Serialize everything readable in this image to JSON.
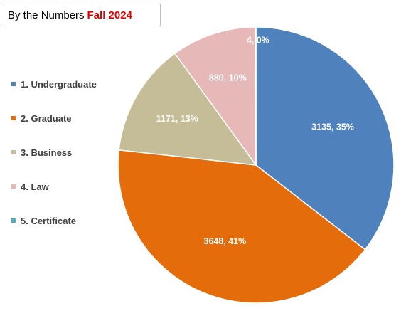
{
  "title": {
    "text": "By the Numbers",
    "highlight": "Fall 2024",
    "highlight_color": "#e00000"
  },
  "chart_data": {
    "type": "pie",
    "start_angle_deg": 0,
    "direction": "clockwise",
    "legend_position": "left",
    "slices": [
      {
        "label": "1. Undergraduate",
        "value": 3135,
        "percent": "35%",
        "color": "#4f81bd",
        "data_label": "3135, 35%"
      },
      {
        "label": "2. Graduate",
        "value": 3648,
        "percent": "41%",
        "color": "#e46c0a",
        "data_label": "3648, 41%"
      },
      {
        "label": "3. Business",
        "value": 1171,
        "percent": "13%",
        "color": "#c4bd97",
        "data_label": "1171, 13%"
      },
      {
        "label": "4. Law",
        "value": 880,
        "percent": "10%",
        "color": "#e6b9b8",
        "data_label": "880, 10%"
      },
      {
        "label": "5. Certificate",
        "value": 4,
        "percent": "0%",
        "color": "#4bacc6",
        "data_label": "4, 0%"
      }
    ]
  }
}
